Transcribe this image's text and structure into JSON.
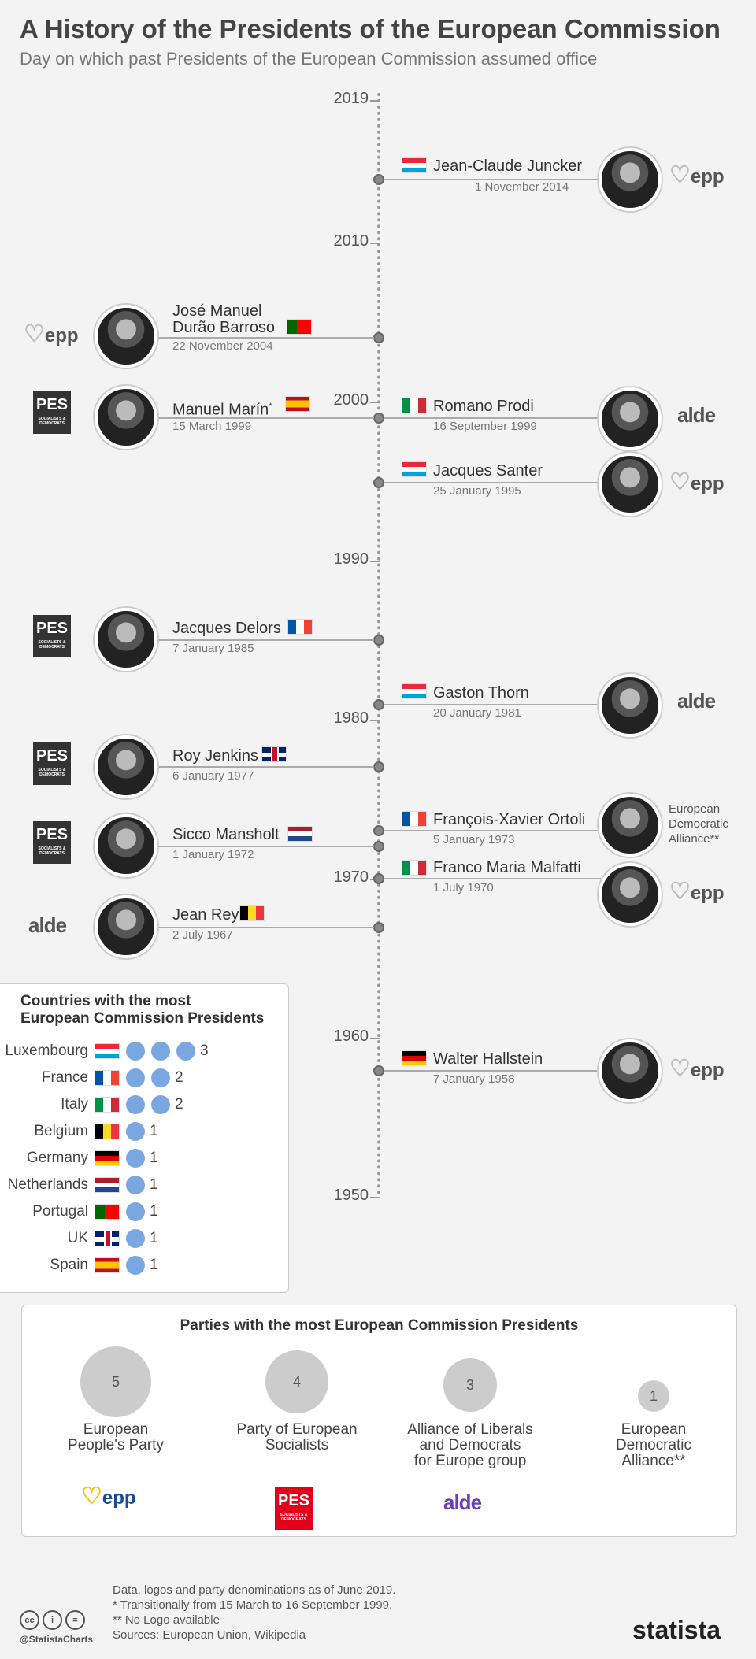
{
  "title": "A History of the Presidents of the European Commission",
  "subtitle": "Day on which past Presidents of the European Commission assumed office",
  "years": [
    "2019",
    "2010",
    "2000",
    "1990",
    "1980",
    "1970",
    "1960",
    "1950"
  ],
  "presidents": {
    "juncker": {
      "name": "Jean-Claude Juncker",
      "date": "1 November 2014",
      "flag": "lu",
      "party": "epp"
    },
    "barroso": {
      "name1": "José Manuel",
      "name2": "Durão Barroso",
      "date": "22 November 2004",
      "flag": "pt",
      "party": "epp"
    },
    "marin": {
      "name": "Manuel Marín",
      "mark": "*",
      "date": "15 March 1999",
      "flag": "es",
      "party": "pes"
    },
    "prodi": {
      "name": "Romano Prodi",
      "date": "16 September 1999",
      "flag": "it",
      "party": "alde"
    },
    "santer": {
      "name": "Jacques Santer",
      "date": "25 January 1995",
      "flag": "lu",
      "party": "epp"
    },
    "delors": {
      "name": "Jacques Delors",
      "date": "7 January 1985",
      "flag": "fr",
      "party": "pes"
    },
    "thorn": {
      "name": "Gaston Thorn",
      "date": "20 January 1981",
      "flag": "lu",
      "party": "alde"
    },
    "jenkins": {
      "name": "Roy Jenkins",
      "date": "6 January 1977",
      "flag": "uk",
      "party": "pes"
    },
    "ortoli": {
      "name": "François-Xavier Ortoli",
      "date": "5 January 1973",
      "flag": "fr",
      "party": "eda"
    },
    "mansholt": {
      "name": "Sicco Mansholt",
      "date": "1 January 1972",
      "flag": "nl",
      "party": "pes"
    },
    "malfatti": {
      "name": "Franco Maria Malfatti",
      "date": "1 July 1970",
      "flag": "it",
      "party": "epp"
    },
    "rey": {
      "name": "Jean Rey",
      "date": "2 July 1967",
      "flag": "be",
      "party": "alde"
    },
    "hallstein": {
      "name": "Walter Hallstein",
      "date": "7 January 1958",
      "flag": "de",
      "party": "epp"
    }
  },
  "logos": {
    "epp": "epp",
    "pes": "PES",
    "pes_sub": "SOCIALISTS & DEMOCRATS",
    "alde": "alde",
    "eda1": "European",
    "eda2": "Democratic",
    "eda3": "Alliance**"
  },
  "countries": {
    "title1": "Countries with the most",
    "title2": "European Commission Presidents",
    "rows": [
      {
        "name": "Luxembourg",
        "flag": "lu",
        "count": "3",
        "n": 3
      },
      {
        "name": "France",
        "flag": "fr",
        "count": "2",
        "n": 2
      },
      {
        "name": "Italy",
        "flag": "it",
        "count": "2",
        "n": 2
      },
      {
        "name": "Belgium",
        "flag": "be",
        "count": "1",
        "n": 1
      },
      {
        "name": "Germany",
        "flag": "de",
        "count": "1",
        "n": 1
      },
      {
        "name": "Netherlands",
        "flag": "nl",
        "count": "1",
        "n": 1
      },
      {
        "name": "Portugal",
        "flag": "pt",
        "count": "1",
        "n": 1
      },
      {
        "name": "UK",
        "flag": "uk",
        "count": "1",
        "n": 1
      },
      {
        "name": "Spain",
        "flag": "es",
        "count": "1",
        "n": 1
      }
    ]
  },
  "parties": {
    "title": "Parties with the most European Commission Presidents",
    "items": [
      {
        "count": "5",
        "line1": "European",
        "line2": "People's Party",
        "line3": ""
      },
      {
        "count": "4",
        "line1": "Party of European",
        "line2": "Socialists",
        "line3": ""
      },
      {
        "count": "3",
        "line1": "Alliance of Liberals",
        "line2": "and Democrats",
        "line3": "for Europe group"
      },
      {
        "count": "1",
        "line1": "European",
        "line2": "Democratic",
        "line3": "Alliance**"
      }
    ]
  },
  "footer": {
    "line1": "Data, logos and party denominations as of June 2019.",
    "line2": "*    Transitionally from 15 March to 16 September 1999.",
    "line3": "** No Logo available",
    "sources": "Sources: European Union, Wikipedia",
    "handle": "@StatistaCharts",
    "brand": "statista"
  }
}
